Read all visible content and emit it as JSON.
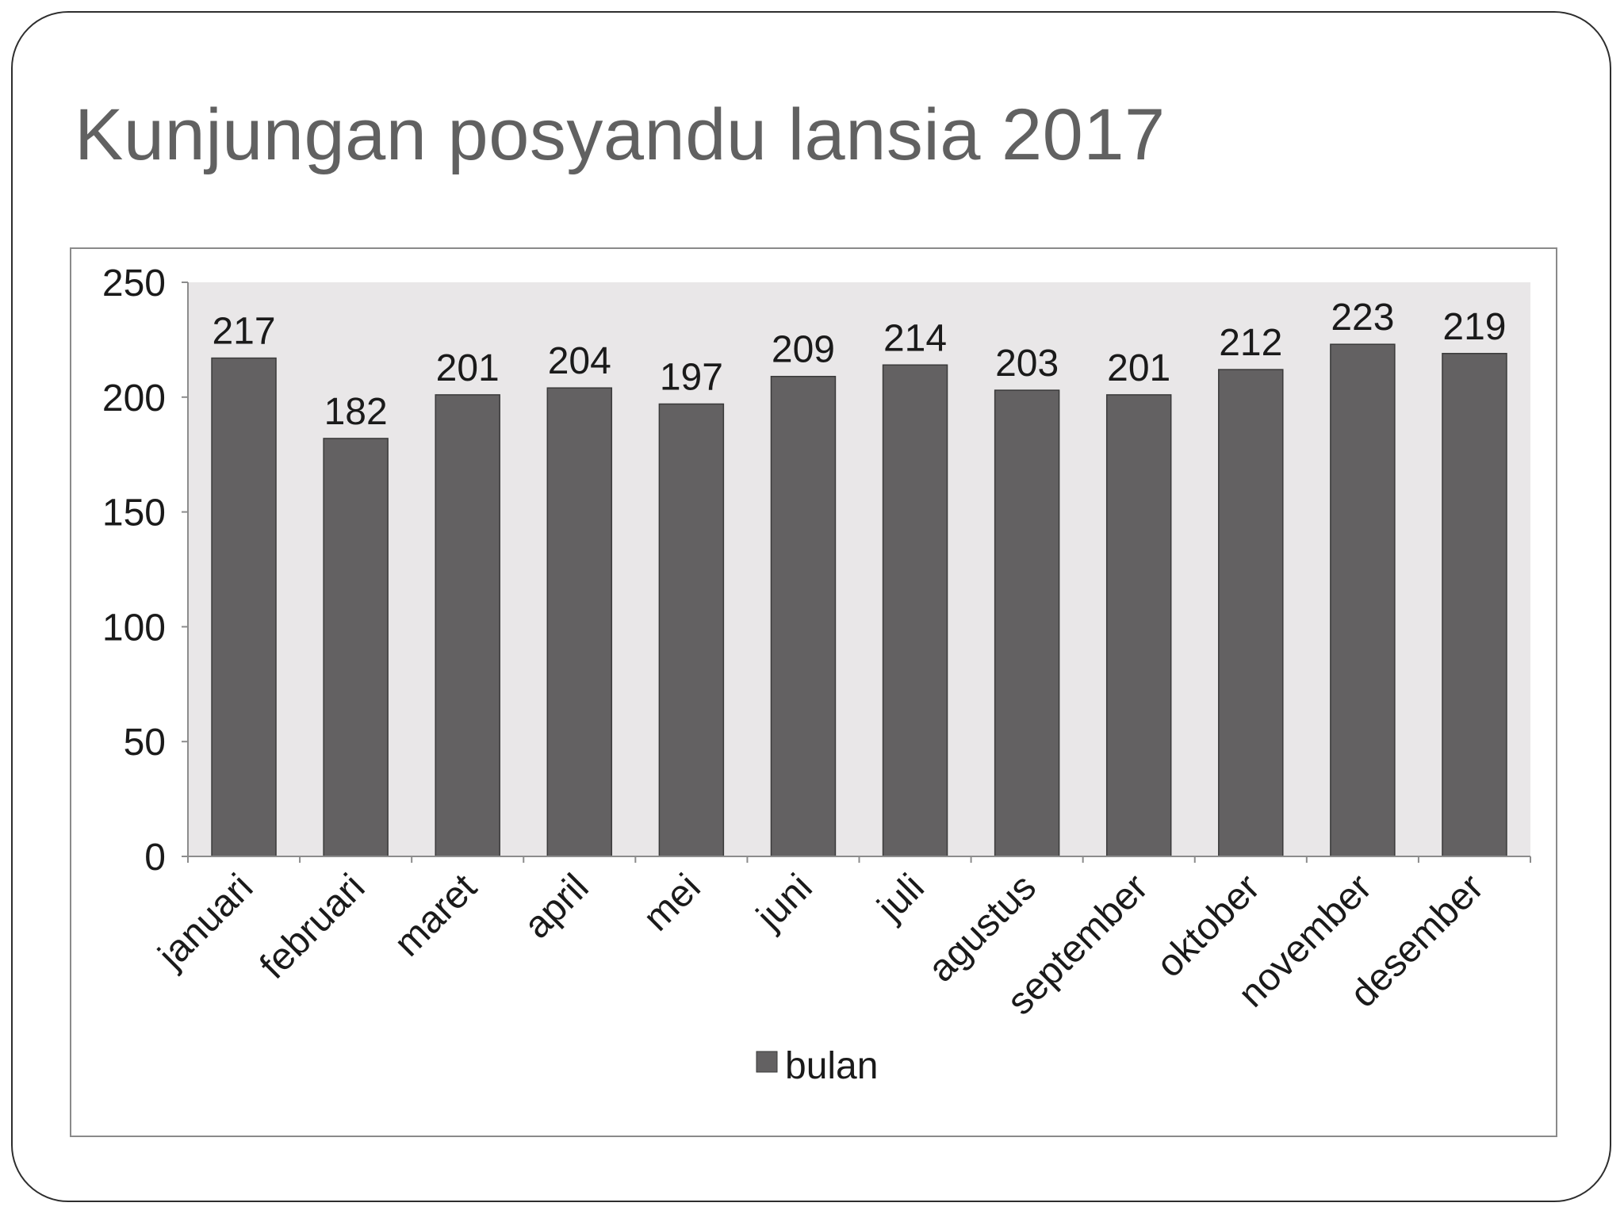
{
  "slide": {
    "title": "Kunjungan posyandu lansia 2017"
  },
  "chart_data": {
    "type": "bar",
    "title": "",
    "xlabel": "",
    "ylabel": "",
    "categories": [
      "januari",
      "februari",
      "maret",
      "april",
      "mei",
      "juni",
      "juli",
      "agustus",
      "september",
      "oktober",
      "november",
      "desember"
    ],
    "series": [
      {
        "name": "bulan",
        "values": [
          217,
          182,
          201,
          204,
          197,
          209,
          214,
          203,
          201,
          212,
          223,
          219
        ]
      }
    ],
    "ylim": [
      0,
      250
    ],
    "yticks": [
      0,
      50,
      100,
      150,
      200,
      250
    ],
    "data_labels": true,
    "grid": false,
    "legend_position": "bottom",
    "colors": {
      "bar": "#636162",
      "plot_bg": "#e9e7e8",
      "axis": "#8c8c8c",
      "text": "#1a1a1a",
      "title": "#616161"
    }
  }
}
